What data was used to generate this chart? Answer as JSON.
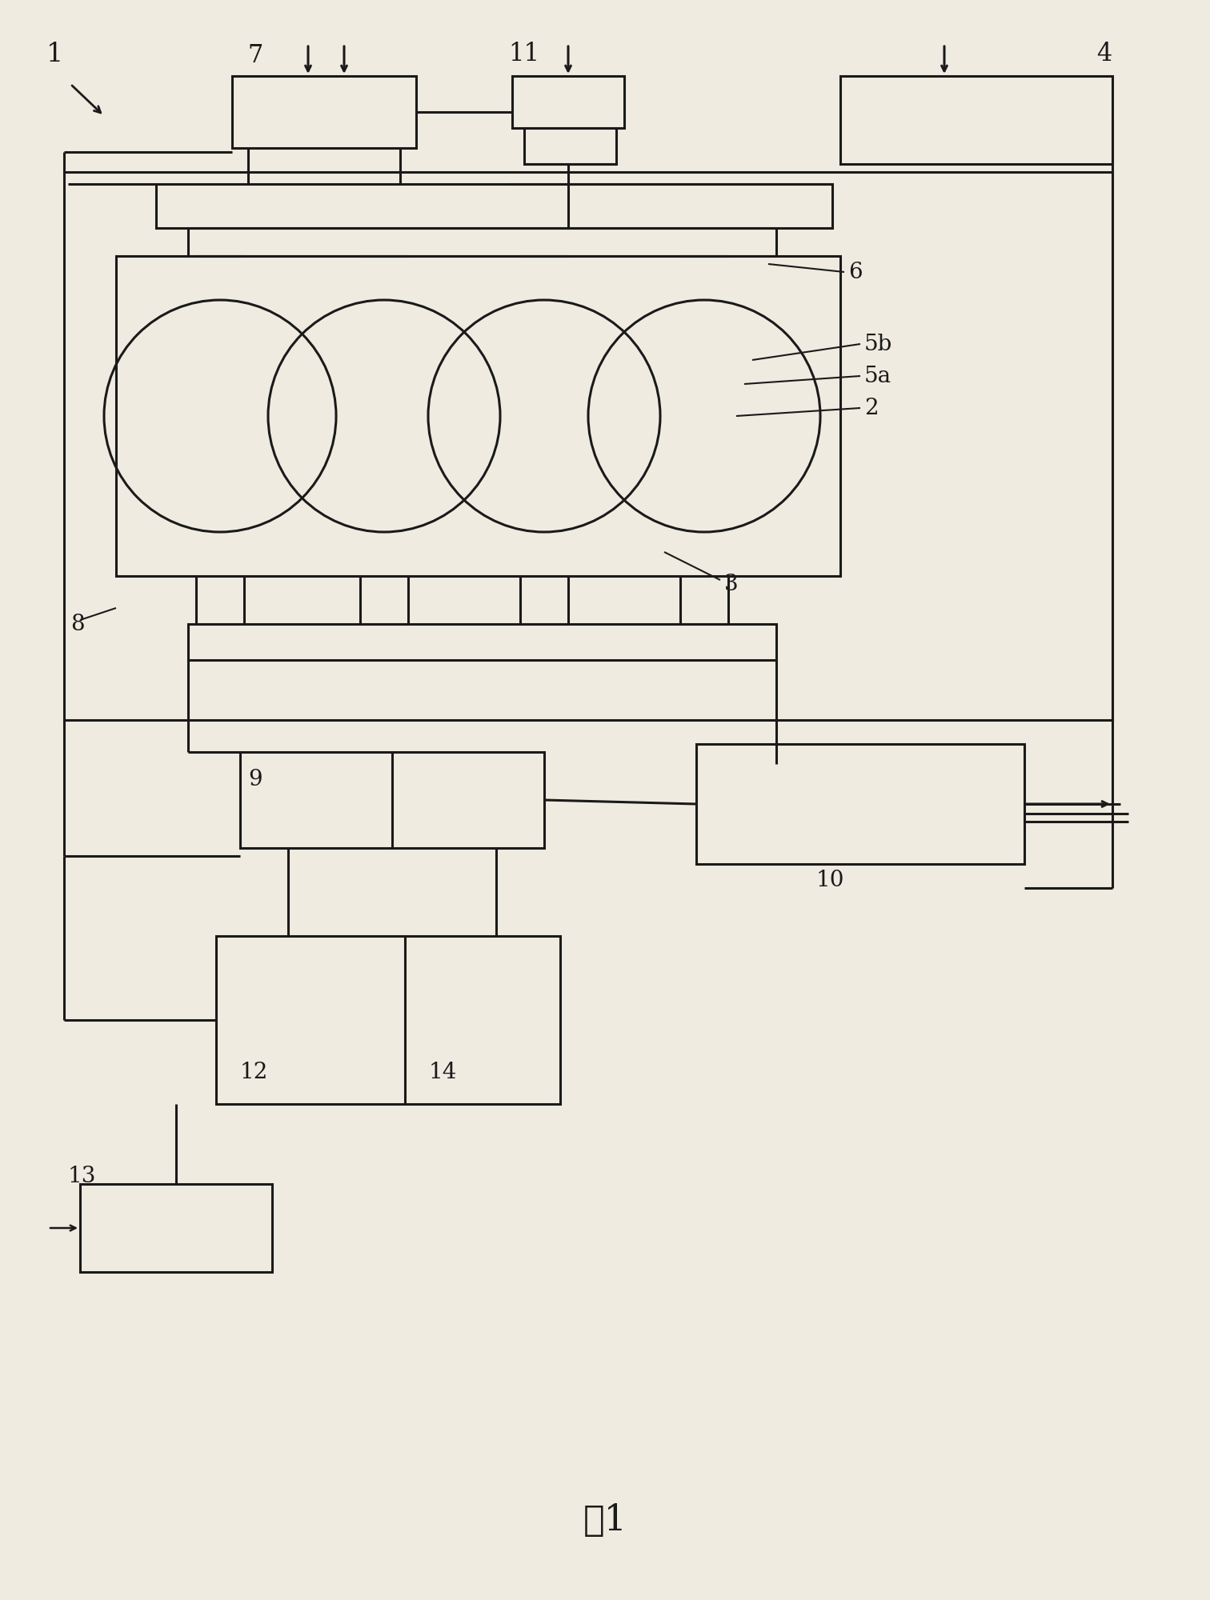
{
  "bg_color": "#f0ebe0",
  "line_color": "#1a1a1a",
  "lw": 2.2,
  "title": "图1",
  "title_fontsize": 32
}
